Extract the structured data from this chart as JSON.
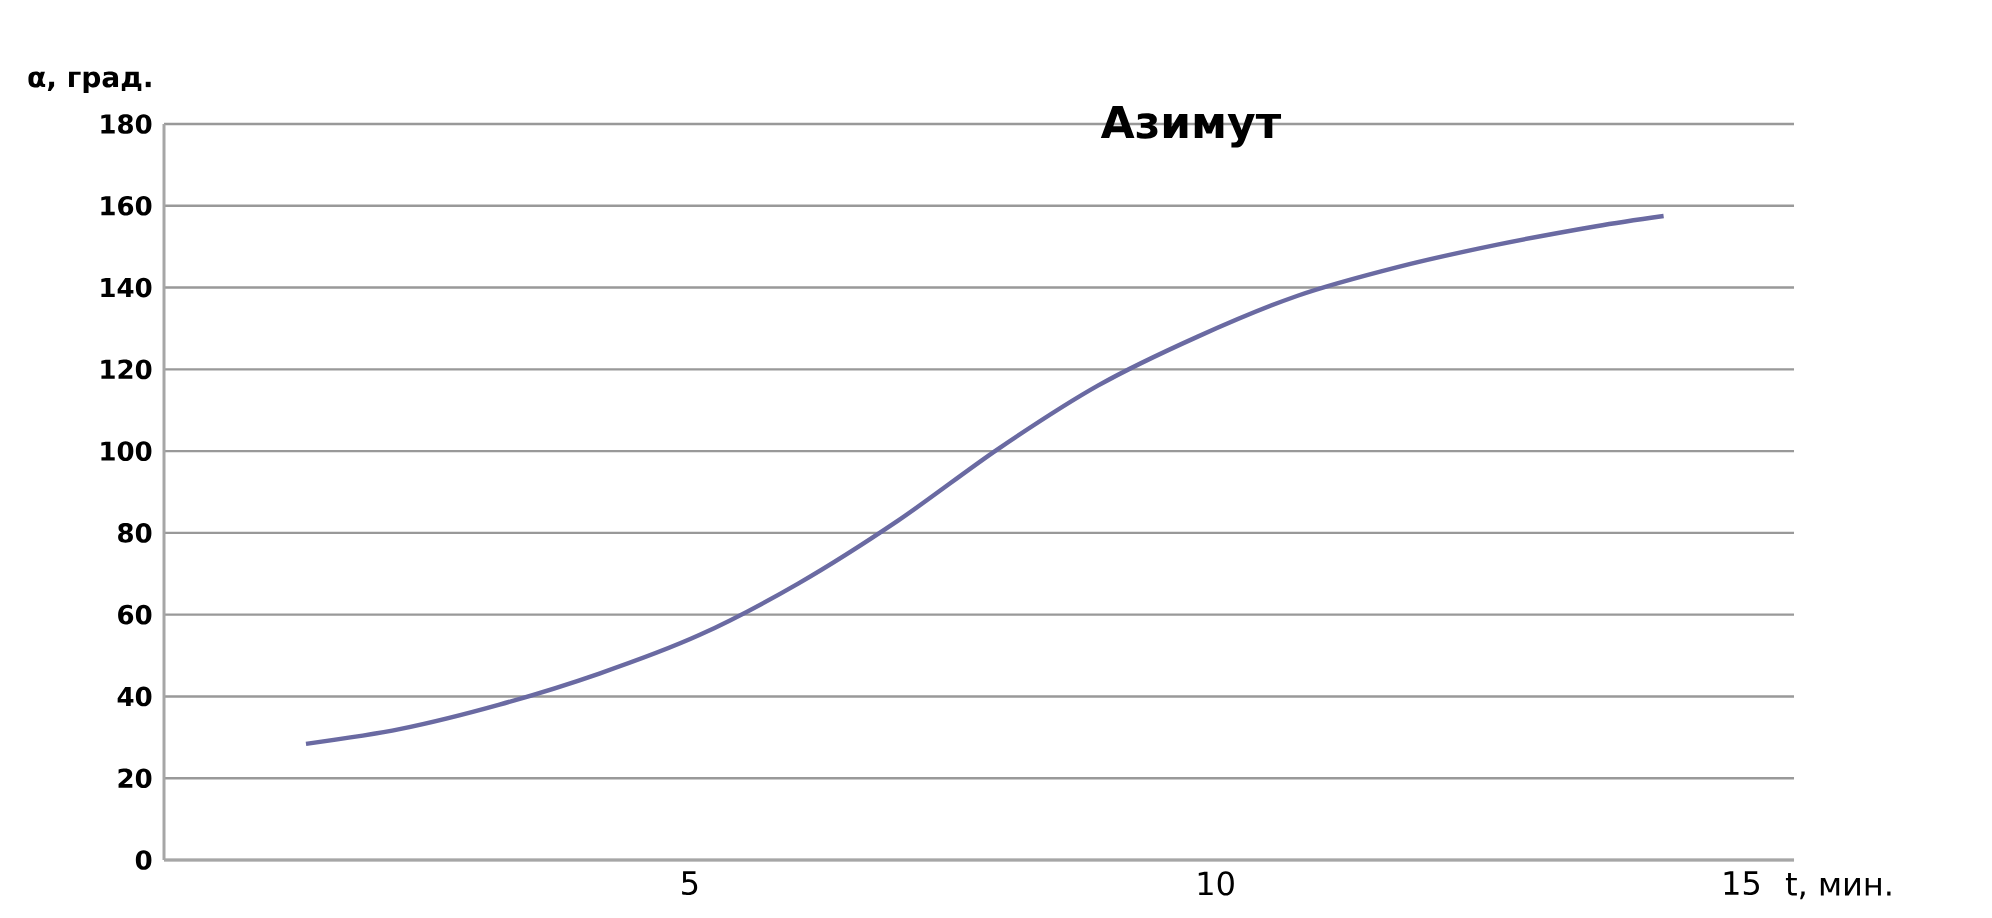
{
  "chart_data": {
    "type": "line",
    "title": "Азимут",
    "xlabel": "t, мин.",
    "ylabel": "α, град.",
    "xlim": [
      0,
      15.5
    ],
    "xticks": [
      5,
      10,
      15
    ],
    "ylim": [
      0,
      180
    ],
    "yticks": [
      0,
      20,
      40,
      60,
      80,
      100,
      120,
      140,
      160,
      180
    ],
    "grid": "y",
    "series": [
      {
        "color": "#6a6aa2",
        "x": [
          1.35,
          2.24,
          3.19,
          4.14,
          5.09,
          6.03,
          6.98,
          7.93,
          8.88,
          9.83,
          10.78,
          11.73,
          12.68,
          13.62,
          14.26
        ],
        "values": [
          28.4,
          32,
          38,
          45.6,
          55,
          67.6,
          83,
          100.5,
          116,
          128,
          138,
          145,
          150.5,
          155,
          157.5
        ]
      }
    ]
  }
}
